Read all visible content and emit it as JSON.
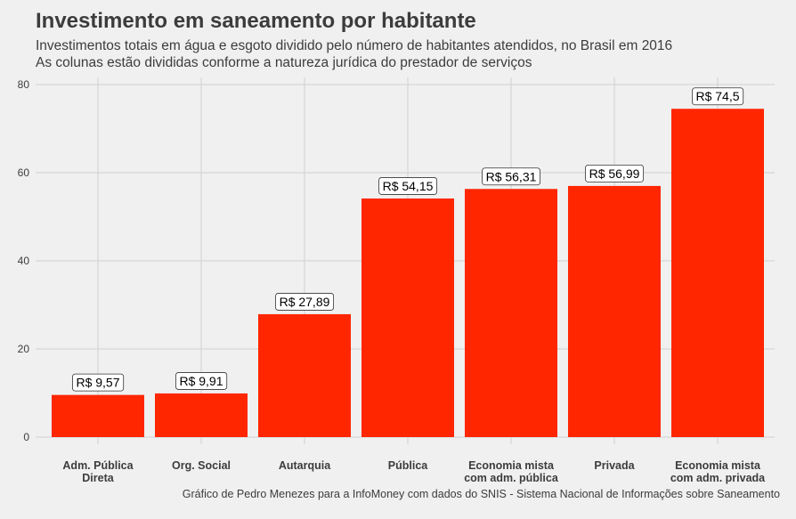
{
  "chart_data": {
    "type": "bar",
    "title": "Investimento em saneamento por habitante",
    "subtitle": [
      "Investimentos totais em água e esgoto dividido pelo número de habitantes atendidos, no Brasil em 2016",
      "As colunas estão divididas conforme a natureza jurídica do prestador de serviços"
    ],
    "caption": "Gráfico de Pedro Menezes para a InfoMoney com dados do SNIS - Sistema Nacional de Informações sobre Saneamento",
    "xlabel": "",
    "ylabel": "",
    "ylim": [
      0,
      80
    ],
    "yticks": [
      0,
      20,
      40,
      60,
      80
    ],
    "grid": true,
    "legend": "none",
    "categories": [
      [
        "Adm. Pública",
        "Direta"
      ],
      [
        "Org. Social"
      ],
      [
        "Autarquia"
      ],
      [
        "Pública"
      ],
      [
        "Economia mista",
        "com adm. pública"
      ],
      [
        "Privada"
      ],
      [
        "Economia mista",
        "com adm. privada"
      ]
    ],
    "values": [
      9.57,
      9.91,
      27.89,
      54.15,
      56.31,
      56.99,
      74.5
    ],
    "data_labels": [
      "R$ 9,57",
      "R$ 9,91",
      "R$ 27,89",
      "R$ 54,15",
      "R$ 56,31",
      "R$ 56,99",
      "R$ 74,5"
    ],
    "bar_color": "#ff2600"
  }
}
